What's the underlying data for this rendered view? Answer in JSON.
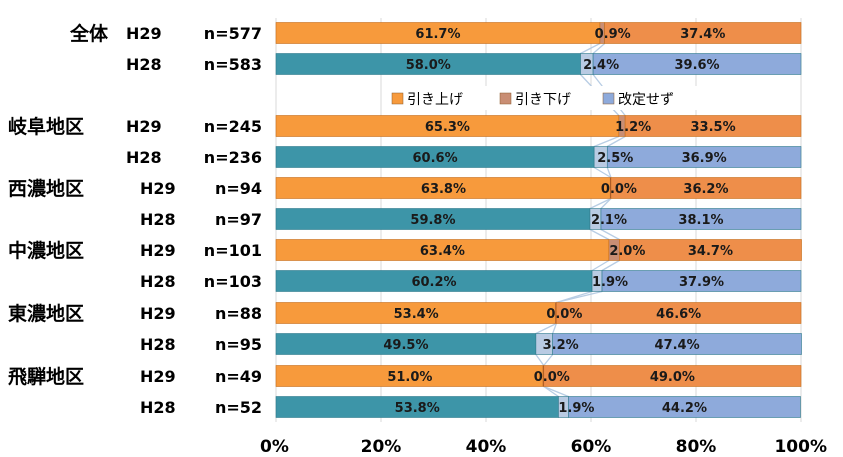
{
  "chart_data": {
    "type": "bar",
    "orientation": "horizontal",
    "stacked": "percent",
    "xlim": [
      0,
      100
    ],
    "x_ticks": [
      "0%",
      "20%",
      "40%",
      "60%",
      "80%",
      "100%"
    ],
    "legend": {
      "placement": "inside-center",
      "entries": [
        "引き上げ",
        "引き下げ",
        "改定せず"
      ]
    },
    "colors": {
      "H29": [
        "#f79a3c",
        "#c98e74",
        "#ee8e4a"
      ],
      "H28": [
        "#3d95a8",
        "#b9cbe3",
        "#8eaadb"
      ]
    },
    "rows": [
      {
        "region": "全体",
        "year": "H29",
        "n": "n=577",
        "values": [
          61.7,
          0.9,
          37.4
        ],
        "labels": [
          "61.7%",
          "0.9%",
          "37.4%"
        ]
      },
      {
        "region": "",
        "year": "H28",
        "n": "n=583",
        "values": [
          58.0,
          2.4,
          39.6
        ],
        "labels": [
          "58.0%",
          "2.4%",
          "39.6%"
        ]
      },
      {
        "region": "岐阜地区",
        "year": "H29",
        "n": "n=245",
        "values": [
          65.3,
          1.2,
          33.5
        ],
        "labels": [
          "65.3%",
          "1.2%",
          "33.5%"
        ]
      },
      {
        "region": "",
        "year": "H28",
        "n": "n=236",
        "values": [
          60.6,
          2.5,
          36.9
        ],
        "labels": [
          "60.6%",
          "2.5%",
          "36.9%"
        ]
      },
      {
        "region": "西濃地区",
        "year": "H29",
        "n": "n=94",
        "values": [
          63.8,
          0.0,
          36.2
        ],
        "labels": [
          "63.8%",
          "0.0%",
          "36.2%"
        ]
      },
      {
        "region": "",
        "year": "H28",
        "n": "n=97",
        "values": [
          59.8,
          2.1,
          38.1
        ],
        "labels": [
          "59.8%",
          "2.1%",
          "38.1%"
        ]
      },
      {
        "region": "中濃地区",
        "year": "H29",
        "n": "n=101",
        "values": [
          63.4,
          2.0,
          34.7
        ],
        "labels": [
          "63.4%",
          "2.0%",
          "34.7%"
        ]
      },
      {
        "region": "",
        "year": "H28",
        "n": "n=103",
        "values": [
          60.2,
          1.9,
          37.9
        ],
        "labels": [
          "60.2%",
          "1.9%",
          "37.9%"
        ]
      },
      {
        "region": "東濃地区",
        "year": "H29",
        "n": "n=88",
        "values": [
          53.4,
          0.0,
          46.6
        ],
        "labels": [
          "53.4%",
          "0.0%",
          "46.6%"
        ]
      },
      {
        "region": "",
        "year": "H28",
        "n": "n=95",
        "values": [
          49.5,
          3.2,
          47.4
        ],
        "labels": [
          "49.5%",
          "3.2%",
          "47.4%"
        ]
      },
      {
        "region": "飛騨地区",
        "year": "H29",
        "n": "n=49",
        "values": [
          51.0,
          0.0,
          49.0
        ],
        "labels": [
          "51.0%",
          "0.0%",
          "49.0%"
        ]
      },
      {
        "region": "",
        "year": "H28",
        "n": "n=52",
        "values": [
          53.8,
          1.9,
          44.2
        ],
        "labels": [
          "53.8%",
          "1.9%",
          "44.2%"
        ]
      }
    ]
  }
}
